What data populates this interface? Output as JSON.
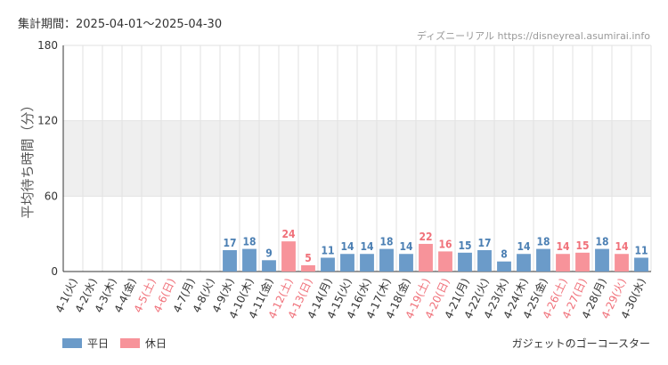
{
  "header": {
    "period": "集計期間：2025-04-01～2025-04-30",
    "source": "ディズニーリアル https://disneyreal.asumirai.info"
  },
  "footer": {
    "attraction": "ガジェットのゴーコースター"
  },
  "colors": {
    "weekday": "#6b9bc9",
    "holiday": "#f7939a",
    "weekday_label": "#4b7fb3",
    "holiday_label": "#f07079",
    "band": "#efefef",
    "grid": "#e2e2e2",
    "axis": "#333333"
  },
  "chart_data": {
    "type": "bar",
    "ylabel": "平均待ち時間（分）",
    "ylim": [
      0,
      180
    ],
    "yticks": [
      0,
      60,
      120,
      180
    ],
    "grid": true,
    "legend": "bottom-left",
    "series": [
      {
        "name": "平日",
        "color": "#6b9bc9"
      },
      {
        "name": "休日",
        "color": "#f7939a"
      }
    ],
    "categories": [
      "4-1(火)",
      "4-2(水)",
      "4-3(木)",
      "4-4(金)",
      "4-5(土)",
      "4-6(日)",
      "4-7(月)",
      "4-8(火)",
      "4-9(水)",
      "4-10(木)",
      "4-11(金)",
      "4-12(土)",
      "4-13(日)",
      "4-14(月)",
      "4-15(火)",
      "4-16(水)",
      "4-17(木)",
      "4-18(金)",
      "4-19(土)",
      "4-20(日)",
      "4-21(月)",
      "4-22(火)",
      "4-23(水)",
      "4-24(木)",
      "4-25(金)",
      "4-26(土)",
      "4-27(日)",
      "4-28(月)",
      "4-29(火)",
      "4-30(水)"
    ],
    "values": [
      null,
      null,
      null,
      null,
      null,
      null,
      null,
      null,
      17,
      18,
      9,
      24,
      5,
      11,
      14,
      14,
      18,
      14,
      22,
      16,
      15,
      17,
      8,
      14,
      18,
      14,
      15,
      18,
      14,
      11
    ],
    "holiday": [
      false,
      false,
      false,
      false,
      true,
      true,
      false,
      false,
      false,
      false,
      false,
      true,
      true,
      false,
      false,
      false,
      false,
      false,
      true,
      true,
      false,
      false,
      false,
      false,
      false,
      true,
      true,
      false,
      true,
      false
    ]
  }
}
